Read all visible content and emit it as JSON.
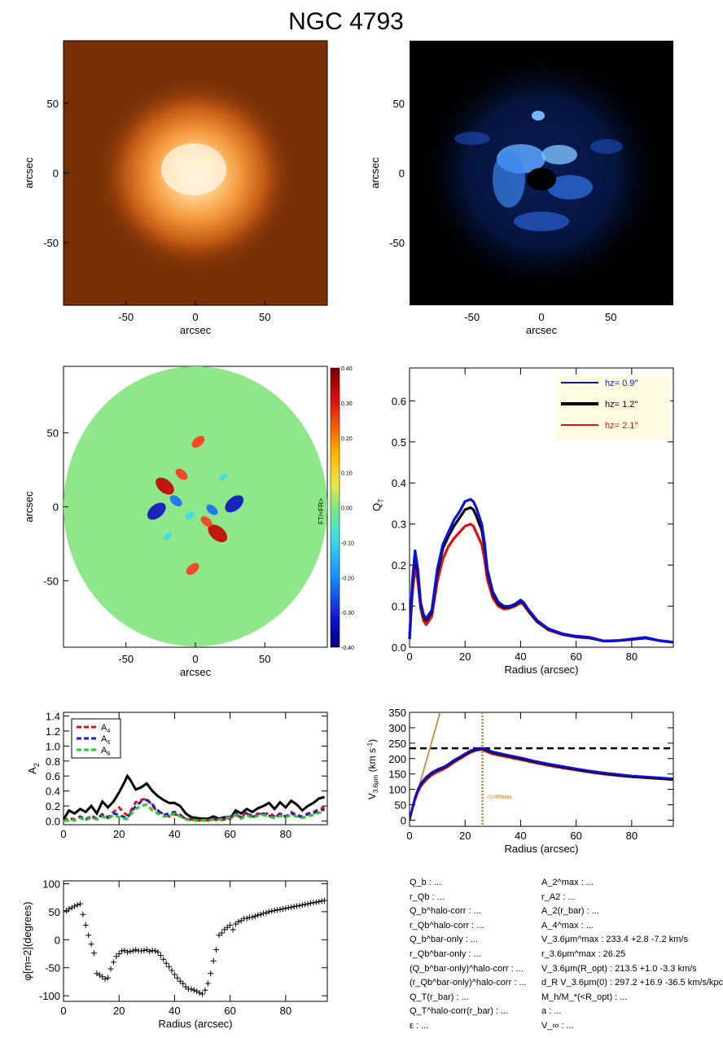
{
  "title": "NGC 4793",
  "chart_data": [
    {
      "type": "heatmap",
      "name": "image-3.6um",
      "xlabel": "arcsec",
      "ylabel": "arcsec",
      "xlim": [
        -95,
        95
      ],
      "ylim": [
        -95,
        95
      ],
      "xticks": [
        -50,
        0,
        50
      ],
      "yticks": [
        -50,
        0,
        50
      ],
      "tick_labels": [
        "-50",
        "0",
        "50"
      ],
      "background_color": "#7a3006",
      "peak_color": "#fff2dc"
    },
    {
      "type": "heatmap",
      "name": "residual-image",
      "xlabel": "arcsec",
      "ylabel": "arcsec",
      "xlim": [
        -95,
        95
      ],
      "ylim": [
        -95,
        95
      ],
      "xticks": [
        -50,
        0,
        50
      ],
      "yticks": [
        -50,
        0,
        50
      ],
      "tick_labels": [
        "-50",
        "0",
        "50"
      ],
      "background_color": "#000000",
      "peak_color": "#8fd2ff"
    },
    {
      "type": "heatmap",
      "name": "force-ratio-map",
      "xlabel": "arcsec",
      "ylabel": "arcsec",
      "xlim": [
        -95,
        95
      ],
      "ylim": [
        -95,
        95
      ],
      "xticks": [
        -50,
        0,
        50
      ],
      "yticks": [
        -50,
        0,
        50
      ],
      "tick_labels": [
        "-50",
        "0",
        "50"
      ],
      "colorbar_ticks": [
        "0.40",
        "0.30",
        "0.20",
        "0.10",
        "0.00",
        "-0.10",
        "-0.20",
        "-0.30",
        "-0.40"
      ],
      "colorbar_label": "FT/<FR>",
      "blobs": [
        {
          "x": -22,
          "y": 14,
          "v": 0.38
        },
        {
          "x": 16,
          "y": -18,
          "v": 0.4
        },
        {
          "x": -10,
          "y": 22,
          "v": 0.2
        },
        {
          "x": 8,
          "y": -10,
          "v": 0.18
        },
        {
          "x": -28,
          "y": -3,
          "v": -0.38
        },
        {
          "x": 28,
          "y": 2,
          "v": -0.38
        },
        {
          "x": -14,
          "y": 4,
          "v": -0.2
        },
        {
          "x": 12,
          "y": -2,
          "v": -0.18
        },
        {
          "x": 2,
          "y": 44,
          "v": 0.22
        },
        {
          "x": -2,
          "y": -42,
          "v": 0.22
        },
        {
          "x": -4,
          "y": -6,
          "v": -0.12
        },
        {
          "x": 20,
          "y": 20,
          "v": -0.08
        },
        {
          "x": -20,
          "y": -20,
          "v": -0.08
        }
      ]
    },
    {
      "type": "line",
      "name": "QT-profile",
      "xlabel": "Radius (arcsec)",
      "ylabel": "QT",
      "xlim": [
        0,
        95
      ],
      "ylim": [
        0,
        0.68
      ],
      "xticks": [
        0,
        20,
        40,
        60,
        80
      ],
      "xtick_labels": [
        "0",
        "20",
        "40",
        "60",
        "80"
      ],
      "yticks": [
        0,
        0.1,
        0.2,
        0.3,
        0.4,
        0.5,
        0.6
      ],
      "ytick_labels": [
        "0.0",
        "0.1",
        "0.2",
        "0.3",
        "0.4",
        "0.5",
        "0.6"
      ],
      "x": [
        0,
        1,
        2,
        3,
        4,
        5,
        6,
        8,
        10,
        12,
        14,
        16,
        18,
        20,
        22,
        23,
        24,
        26,
        27,
        28,
        30,
        32,
        34,
        36,
        38,
        40,
        41,
        43,
        46,
        50,
        55,
        60,
        65,
        70,
        75,
        80,
        85,
        90,
        95
      ],
      "series": [
        {
          "name": "hz=  0.9''",
          "color": "#0a12d8",
          "values": [
            0.02,
            0.16,
            0.235,
            0.19,
            0.11,
            0.08,
            0.07,
            0.09,
            0.19,
            0.25,
            0.28,
            0.31,
            0.33,
            0.355,
            0.36,
            0.355,
            0.34,
            0.3,
            0.255,
            0.19,
            0.135,
            0.11,
            0.1,
            0.1,
            0.105,
            0.115,
            0.11,
            0.09,
            0.065,
            0.045,
            0.033,
            0.027,
            0.024,
            0.015,
            0.016,
            0.02,
            0.024,
            0.016,
            0.012
          ]
        },
        {
          "name": "hz=  1.2''",
          "color": "#000000",
          "values": [
            0.02,
            0.15,
            0.22,
            0.18,
            0.105,
            0.075,
            0.065,
            0.085,
            0.18,
            0.24,
            0.27,
            0.295,
            0.315,
            0.335,
            0.34,
            0.335,
            0.32,
            0.285,
            0.245,
            0.185,
            0.13,
            0.105,
            0.097,
            0.098,
            0.103,
            0.112,
            0.108,
            0.088,
            0.063,
            0.044,
            0.032,
            0.026,
            0.023,
            0.015,
            0.016,
            0.019,
            0.023,
            0.016,
            0.012
          ]
        },
        {
          "name": "hz=  2.1''",
          "color": "#e01010",
          "values": [
            0.02,
            0.13,
            0.195,
            0.16,
            0.095,
            0.065,
            0.055,
            0.075,
            0.16,
            0.215,
            0.245,
            0.265,
            0.28,
            0.295,
            0.3,
            0.295,
            0.28,
            0.25,
            0.215,
            0.165,
            0.12,
            0.1,
            0.093,
            0.095,
            0.1,
            0.108,
            0.104,
            0.085,
            0.061,
            0.042,
            0.031,
            0.025,
            0.022,
            0.015,
            0.016,
            0.019,
            0.022,
            0.016,
            0.012
          ]
        }
      ],
      "legend": "top-right"
    },
    {
      "type": "line",
      "name": "fourier-amplitudes",
      "xlabel": "",
      "ylabel": "A2",
      "xlim": [
        0,
        95
      ],
      "ylim": [
        -0.05,
        1.45
      ],
      "xticks": [
        0,
        20,
        40,
        60,
        80
      ],
      "xtick_labels": [
        "0",
        "20",
        "40",
        "60",
        "80"
      ],
      "yticks": [
        0,
        0.2,
        0.4,
        0.6,
        0.8,
        1.0,
        1.2,
        1.4
      ],
      "ytick_labels": [
        "0.0",
        "0.2",
        "0.4",
        "0.6",
        "0.8",
        "1.0",
        "1.2",
        "1.4"
      ],
      "x": [
        0,
        2,
        4,
        6,
        8,
        10,
        12,
        14,
        16,
        18,
        20,
        22,
        23,
        24,
        26,
        28,
        30,
        32,
        34,
        36,
        38,
        40,
        42,
        44,
        46,
        48,
        50,
        52,
        54,
        56,
        58,
        60,
        62,
        64,
        66,
        68,
        70,
        72,
        74,
        76,
        78,
        80,
        82,
        84,
        86,
        88,
        90,
        92,
        94
      ],
      "series_a2": {
        "name": "A2",
        "color": "#000000",
        "values": [
          0.02,
          0.14,
          0.1,
          0.16,
          0.12,
          0.2,
          0.1,
          0.26,
          0.18,
          0.26,
          0.38,
          0.52,
          0.6,
          0.55,
          0.42,
          0.45,
          0.5,
          0.4,
          0.33,
          0.28,
          0.24,
          0.24,
          0.2,
          0.1,
          0.05,
          0.04,
          0.03,
          0.03,
          0.06,
          0.03,
          0.05,
          0.03,
          0.14,
          0.1,
          0.16,
          0.12,
          0.17,
          0.2,
          0.24,
          0.16,
          0.25,
          0.18,
          0.27,
          0.22,
          0.14,
          0.2,
          0.24,
          0.3,
          0.32
        ]
      },
      "series": [
        {
          "name": "A4",
          "label": "A",
          "sub": "4",
          "color": "#e01010",
          "values": [
            0.0,
            0.04,
            0.02,
            0.06,
            0.02,
            0.07,
            0.03,
            0.09,
            0.05,
            0.12,
            0.18,
            0.1,
            0.08,
            0.12,
            0.25,
            0.28,
            0.3,
            0.2,
            0.12,
            0.1,
            0.06,
            0.09,
            0.07,
            0.03,
            0.02,
            0.01,
            0.01,
            0.01,
            0.02,
            0.01,
            0.02,
            0.04,
            0.08,
            0.05,
            0.12,
            0.06,
            0.1,
            0.08,
            0.11,
            0.06,
            0.1,
            0.05,
            0.12,
            0.08,
            0.06,
            0.1,
            0.12,
            0.16,
            0.18
          ]
        },
        {
          "name": "A6",
          "label": "A",
          "sub": "6",
          "color": "#1a1ae0",
          "values": [
            0.0,
            0.03,
            0.01,
            0.05,
            0.02,
            0.06,
            0.02,
            0.08,
            0.04,
            0.1,
            0.08,
            0.05,
            0.04,
            0.1,
            0.2,
            0.26,
            0.28,
            0.22,
            0.14,
            0.08,
            0.1,
            0.12,
            0.08,
            0.03,
            0.01,
            0.01,
            0.01,
            0.02,
            0.03,
            0.02,
            0.04,
            0.06,
            0.1,
            0.04,
            0.1,
            0.05,
            0.08,
            0.1,
            0.07,
            0.05,
            0.09,
            0.06,
            0.1,
            0.07,
            0.05,
            0.09,
            0.1,
            0.14,
            0.15
          ]
        },
        {
          "name": "A8",
          "label": "A",
          "sub": "8",
          "color": "#22cc22",
          "values": [
            0.0,
            0.02,
            0.01,
            0.04,
            0.01,
            0.05,
            0.02,
            0.06,
            0.03,
            0.08,
            0.05,
            0.03,
            0.03,
            0.08,
            0.16,
            0.2,
            0.22,
            0.14,
            0.1,
            0.06,
            0.07,
            0.1,
            0.06,
            0.02,
            0.01,
            0.01,
            0.01,
            0.01,
            0.02,
            0.02,
            0.03,
            0.05,
            0.08,
            0.03,
            0.08,
            0.04,
            0.07,
            0.08,
            0.06,
            0.04,
            0.07,
            0.05,
            0.08,
            0.06,
            0.04,
            0.07,
            0.08,
            0.11,
            0.12
          ]
        }
      ],
      "legend": "top-left"
    },
    {
      "type": "line",
      "name": "rotation-curve",
      "xlabel": "Radius (arcsec)",
      "ylabel": "V3.6um (km s-1)",
      "xlim": [
        0,
        95
      ],
      "ylim": [
        -20,
        350
      ],
      "xticks": [
        0,
        20,
        40,
        60,
        80
      ],
      "xtick_labels": [
        "0",
        "20",
        "40",
        "60",
        "80"
      ],
      "yticks": [
        0,
        50,
        100,
        150,
        200,
        250,
        300,
        350
      ],
      "ytick_labels": [
        "0",
        "50",
        "100",
        "150",
        "200",
        "250",
        "300",
        "350"
      ],
      "vmax": 233.4,
      "rmax": 26.25,
      "rmax_label": "r1/4Rmax",
      "x": [
        0,
        1,
        2,
        3,
        4,
        5,
        6,
        8,
        10,
        12,
        14,
        16,
        18,
        20,
        22,
        24,
        26,
        28,
        30,
        35,
        40,
        45,
        50,
        55,
        60,
        65,
        70,
        75,
        80,
        85,
        90,
        95
      ],
      "series": [
        {
          "name": "hz=0.9",
          "color": "#0a12d8",
          "values": [
            0,
            40,
            75,
            100,
            118,
            130,
            140,
            155,
            165,
            172,
            182,
            195,
            205,
            216,
            226,
            232,
            234,
            229,
            222,
            212,
            203,
            192,
            183,
            175,
            167,
            160,
            154,
            149,
            144,
            141,
            138,
            135
          ]
        },
        {
          "name": "hz=1.2",
          "color": "#000000",
          "values": [
            0,
            38,
            72,
            97,
            115,
            127,
            137,
            152,
            162,
            169,
            179,
            192,
            202,
            213,
            223,
            229,
            232,
            226,
            219,
            209,
            200,
            189,
            180,
            172,
            164,
            157,
            151,
            146,
            141,
            138,
            135,
            132
          ]
        },
        {
          "name": "hz=2.1",
          "color": "#e01010",
          "values": [
            0,
            34,
            66,
            90,
            108,
            120,
            130,
            146,
            156,
            164,
            174,
            187,
            198,
            209,
            219,
            226,
            229,
            221,
            214,
            205,
            196,
            186,
            177,
            169,
            162,
            155,
            149,
            144,
            140,
            137,
            134,
            131
          ]
        }
      ],
      "inner_slope_line": {
        "color": "#d97a1a",
        "x": [
          0,
          11
        ],
        "y": [
          0,
          350
        ]
      }
    },
    {
      "type": "scatter",
      "name": "phase-angle",
      "xlabel": "Radius (arcsec)",
      "ylabel": "φ[m=2](degrees)",
      "xlim": [
        0,
        95
      ],
      "ylim": [
        -110,
        105
      ],
      "xticks": [
        0,
        20,
        40,
        60,
        80
      ],
      "xtick_labels": [
        "0",
        "20",
        "40",
        "60",
        "80"
      ],
      "yticks": [
        -100,
        -50,
        0,
        50,
        100
      ],
      "ytick_labels": [
        "-100",
        "-50",
        "0",
        "50",
        "100"
      ],
      "x": [
        1,
        2,
        3,
        4,
        5,
        6,
        7,
        8,
        9,
        10,
        11,
        12,
        13,
        14,
        15,
        16,
        17,
        18,
        19,
        20,
        21,
        22,
        23,
        24,
        25,
        26,
        27,
        28,
        29,
        30,
        31,
        32,
        33,
        34,
        35,
        36,
        37,
        38,
        39,
        40,
        41,
        42,
        43,
        44,
        45,
        46,
        47,
        48,
        49,
        50,
        51,
        52,
        53,
        54,
        55,
        56,
        57,
        58,
        59,
        60,
        61,
        62,
        63,
        64,
        65,
        66,
        67,
        68,
        69,
        70,
        71,
        72,
        73,
        74,
        75,
        76,
        77,
        78,
        79,
        80,
        81,
        82,
        83,
        84,
        85,
        86,
        87,
        88,
        89,
        90,
        91,
        92,
        93,
        94
      ],
      "y": [
        52,
        55,
        57,
        60,
        62,
        64,
        45,
        26,
        8,
        -8,
        -24,
        -60,
        -63,
        -66,
        -70,
        -68,
        -52,
        -40,
        -30,
        -25,
        -20,
        -19,
        -22,
        -21,
        -20,
        -18,
        -20,
        -20,
        -19,
        -18,
        -21,
        -19,
        -20,
        -22,
        -28,
        -35,
        -42,
        -48,
        -55,
        -62,
        -68,
        -74,
        -78,
        -84,
        -88,
        -88,
        -90,
        -92,
        -95,
        -97,
        -90,
        -78,
        -60,
        -38,
        -18,
        8,
        12,
        18,
        22,
        26,
        18,
        28,
        32,
        34,
        38,
        38,
        40,
        40,
        42,
        44,
        45,
        47,
        48,
        50,
        51,
        52,
        53,
        54,
        55,
        56,
        57,
        58,
        59,
        60,
        61,
        62,
        63,
        64,
        65,
        66,
        67,
        68,
        69,
        70
      ]
    }
  ],
  "params_left": [
    "Q_b : ...",
    "r_Qb : ...",
    "Q_b^halo-corr : ...",
    "r_Qb^halo-corr : ...",
    "Q_b^bar-only : ...",
    "r_Qb^bar-only : ...",
    "(Q_b^bar-only)^halo-corr : ...",
    "(r_Qb^bar-only)^halo-corr : ...",
    "Q_T(r_bar) : ...",
    "Q_T^halo-corr(r_bar) : ...",
    "ε : ..."
  ],
  "params_right": [
    "A_2^max : ...",
    "r_A2 : ...",
    "A_2(r_bar) : ...",
    "A_4^max : ...",
    "V_3.6μm^max : 233.4 +2.8 -7.2 km/s",
    "r_3.6μm^max : 26.25",
    "V_3.6μm(R_opt) : 213.5 +1.0 -3.3 km/s",
    "d_R V_3.6μm(0) : 297.2 +16.9 -36.5 km/s/kpc",
    "M_h/M_*(<R_opt) : ...",
    "a : ...",
    "V_∞ : ..."
  ]
}
